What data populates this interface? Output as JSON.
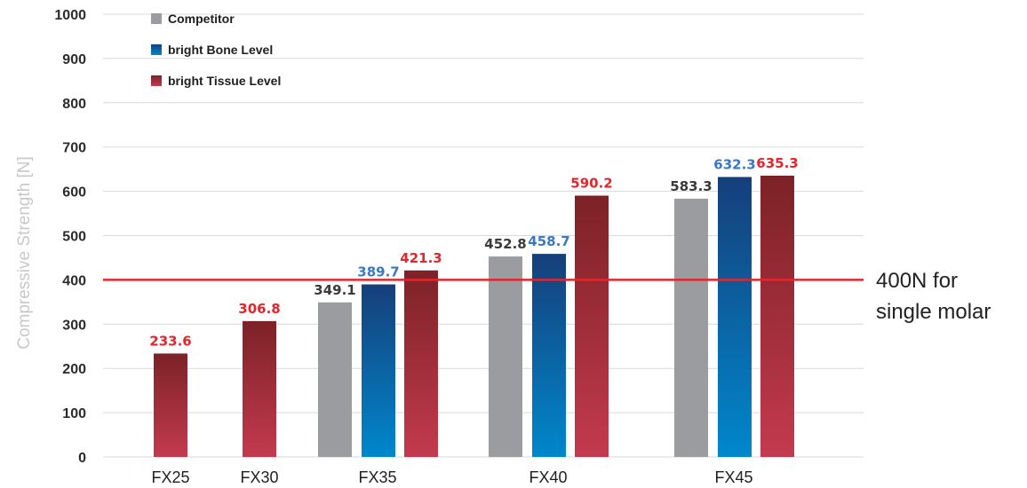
{
  "chart_data": {
    "type": "bar",
    "title": "",
    "xlabel": "",
    "ylabel": "Compressive Strength [N]",
    "ylim": [
      0,
      1000
    ],
    "y_ticks": [
      "0",
      "100",
      "200",
      "300",
      "400",
      "500",
      "600",
      "700",
      "800",
      "900",
      "1000"
    ],
    "grid": "horizontal",
    "legend_placement": "top-left",
    "categories": [
      "FX25",
      "FX30",
      "FX35",
      "FX40",
      "FX45"
    ],
    "series": [
      {
        "name": "Competitor",
        "values": [
          null,
          null,
          349.1,
          452.8,
          583.3
        ],
        "labels": [
          "",
          "",
          "349.1",
          "452.8",
          "583.3"
        ],
        "color_top": "#9a9ca0",
        "color_bottom": "#9a9ca0",
        "label_color": "#3a3a3a"
      },
      {
        "name": "bright Bone Level",
        "values": [
          null,
          null,
          389.7,
          458.7,
          632.3
        ],
        "labels": [
          "",
          "",
          "389.7",
          "458.7",
          "632.3"
        ],
        "color_top": "#163f7a",
        "color_bottom": "#0087cc",
        "label_color": "#3a78c2"
      },
      {
        "name": "bright Tissue Level",
        "values": [
          233.6,
          306.8,
          421.3,
          590.2,
          635.3
        ],
        "labels": [
          "233.6",
          "306.8",
          "421.3",
          "590.2",
          "635.3"
        ],
        "color_top": "#7c2226",
        "color_bottom": "#c33a4e",
        "label_color": "#e3262c"
      }
    ],
    "reference_line": {
      "value": 400,
      "color": "#e3262c",
      "label_lines": [
        "400N for",
        "single molar"
      ]
    }
  }
}
